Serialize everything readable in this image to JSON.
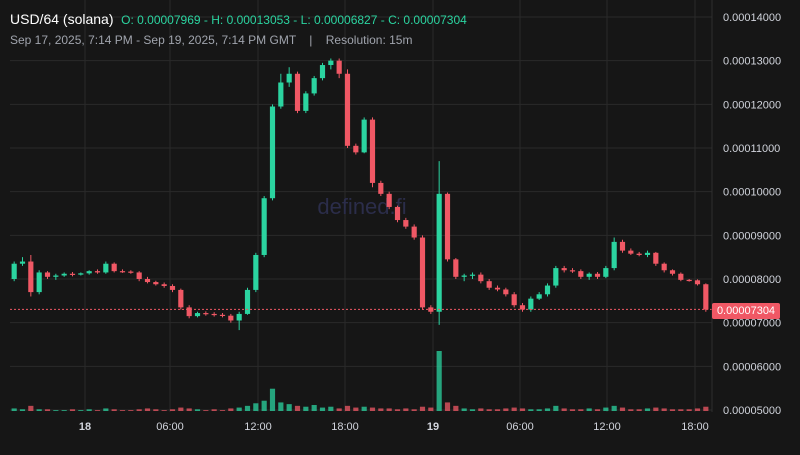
{
  "header": {
    "pair": "USD/64 (solana)",
    "o_label": "O:",
    "o_value": "0.00007969",
    "h_label": "H:",
    "h_value": "0.00013053",
    "l_label": "L:",
    "l_value": "0.00006827",
    "c_label": "C:",
    "c_value": "0.00007304",
    "date_range": "Sep 17, 2025, 7:14 PM - Sep 19, 2025, 7:14 PM GMT",
    "separator": "|",
    "resolution": "Resolution: 15m"
  },
  "watermark": "defined.fi",
  "last_price_label": "0.00007304",
  "colors": {
    "background": "#161616",
    "up": "#2bd4a0",
    "down": "#f05865",
    "grid": "#2a2a2a",
    "axis_text": "#d1d4dc",
    "last_price_line": "#f05865"
  },
  "chart_data": {
    "type": "candlestick",
    "y_axis_labels": [
      "0.00014000",
      "0.00013000",
      "0.00012000",
      "0.00011000",
      "0.00010000",
      "0.00009000",
      "0.00008000",
      "0.00007000",
      "0.00006000",
      "0.00005000"
    ],
    "x_axis_labels": [
      "18",
      "06:00",
      "12:00",
      "18:00",
      "19",
      "06:00",
      "12:00",
      "18:00"
    ],
    "ylim": [
      5e-05,
      0.00014
    ],
    "last_price": 7.304e-05,
    "grid": true,
    "candles": [
      [
        8e-05,
        8.4e-05,
        7.95e-05,
        8.35e-05
      ],
      [
        8.35e-05,
        8.5e-05,
        8.3e-05,
        8.4e-05
      ],
      [
        8.4e-05,
        8.55e-05,
        7.6e-05,
        7.7e-05
      ],
      [
        7.7e-05,
        8.2e-05,
        7.65e-05,
        8.15e-05
      ],
      [
        8.15e-05,
        8.18e-05,
        8e-05,
        8.05e-05
      ],
      [
        8.05e-05,
        8.12e-05,
        7.98e-05,
        8.08e-05
      ],
      [
        8.08e-05,
        8.15e-05,
        8.05e-05,
        8.12e-05
      ],
      [
        8.12e-05,
        8.16e-05,
        8.06e-05,
        8.1e-05
      ],
      [
        8.1e-05,
        8.15e-05,
        8.08e-05,
        8.13e-05
      ],
      [
        8.13e-05,
        8.2e-05,
        8.1e-05,
        8.18e-05
      ],
      [
        8.18e-05,
        8.22e-05,
        8.12e-05,
        8.15e-05
      ],
      [
        8.15e-05,
        8.4e-05,
        8.12e-05,
        8.35e-05
      ],
      [
        8.35e-05,
        8.38e-05,
        8.15e-05,
        8.18e-05
      ],
      [
        8.18e-05,
        8.22e-05,
        8.14e-05,
        8.17e-05
      ],
      [
        8.17e-05,
        8.2e-05,
        8.12e-05,
        8.15e-05
      ],
      [
        8.15e-05,
        8.18e-05,
        7.95e-05,
        8e-05
      ],
      [
        8e-05,
        8.05e-05,
        7.9e-05,
        7.93e-05
      ],
      [
        7.93e-05,
        7.96e-05,
        7.85e-05,
        7.88e-05
      ],
      [
        7.88e-05,
        7.92e-05,
        7.8e-05,
        7.84e-05
      ],
      [
        7.84e-05,
        7.88e-05,
        7.7e-05,
        7.75e-05
      ],
      [
        7.75e-05,
        7.78e-05,
        7.3e-05,
        7.35e-05
      ],
      [
        7.35e-05,
        7.4e-05,
        7.1e-05,
        7.15e-05
      ],
      [
        7.15e-05,
        7.25e-05,
        7.12e-05,
        7.22e-05
      ],
      [
        7.22e-05,
        7.26e-05,
        7.16e-05,
        7.2e-05
      ],
      [
        7.2e-05,
        7.24e-05,
        7.14e-05,
        7.18e-05
      ],
      [
        7.18e-05,
        7.22e-05,
        7.12e-05,
        7.16e-05
      ],
      [
        7.16e-05,
        7.2e-05,
        7e-05,
        7.05e-05
      ],
      [
        7.05e-05,
        7.25e-05,
        6.83e-05,
        7.2e-05
      ],
      [
        7.2e-05,
        7.8e-05,
        7.18e-05,
        7.75e-05
      ],
      [
        7.75e-05,
        8.6e-05,
        7.7e-05,
        8.55e-05
      ],
      [
        8.55e-05,
        9.9e-05,
        8.5e-05,
        9.85e-05
      ],
      [
        9.85e-05,
        0.00012,
        9.8e-05,
        0.0001195
      ],
      [
        0.0001195,
        0.000127,
        0.000119,
        0.000125
      ],
      [
        0.000125,
        0.0001285,
        0.000124,
        0.000127
      ],
      [
        0.000127,
        0.0001275,
        0.000118,
        0.0001185
      ],
      [
        0.0001185,
        0.000123,
        0.000118,
        0.0001225
      ],
      [
        0.0001225,
        0.0001265,
        0.000122,
        0.000126
      ],
      [
        0.000126,
        0.0001295,
        0.0001255,
        0.000129
      ],
      [
        0.000129,
        0.0001305,
        0.000128,
        0.00013
      ],
      [
        0.00013,
        0.0001305,
        0.000126,
        0.000127
      ],
      [
        0.000127,
        0.000128,
        0.00011,
        0.0001105
      ],
      [
        0.0001105,
        0.000111,
        0.0001085,
        0.000109
      ],
      [
        0.000109,
        0.000117,
        0.0001088,
        0.0001165
      ],
      [
        0.0001165,
        0.000117,
        0.000101,
        0.000102
      ],
      [
        0.000102,
        0.0001025,
        9.9e-05,
        9.95e-05
      ],
      [
        9.95e-05,
        0.0001,
        9.6e-05,
        9.65e-05
      ],
      [
        9.65e-05,
        9.68e-05,
        9.3e-05,
        9.35e-05
      ],
      [
        9.35e-05,
        9.4e-05,
        9.15e-05,
        9.2e-05
      ],
      [
        9.2e-05,
        9.25e-05,
        8.9e-05,
        8.95e-05
      ],
      [
        8.95e-05,
        9e-05,
        7.3e-05,
        7.35e-05
      ],
      [
        7.35e-05,
        7.4e-05,
        7.2e-05,
        7.25e-05
      ],
      [
        7.25e-05,
        0.000107,
        6.95e-05,
        9.95e-05
      ],
      [
        9.95e-05,
        9.98e-05,
        8.4e-05,
        8.45e-05
      ],
      [
        8.45e-05,
        8.48e-05,
        8e-05,
        8.05e-05
      ],
      [
        8.05e-05,
        8.12e-05,
        7.95e-05,
        8.08e-05
      ],
      [
        8.08e-05,
        8.15e-05,
        8e-05,
        8.1e-05
      ],
      [
        8.1e-05,
        8.15e-05,
        7.9e-05,
        7.95e-05
      ],
      [
        7.95e-05,
        8e-05,
        7.75e-05,
        7.8e-05
      ],
      [
        7.8e-05,
        7.85e-05,
        7.72e-05,
        7.76e-05
      ],
      [
        7.76e-05,
        7.8e-05,
        7.6e-05,
        7.65e-05
      ],
      [
        7.65e-05,
        7.7e-05,
        7.35e-05,
        7.4e-05
      ],
      [
        7.4e-05,
        7.45e-05,
        7.25e-05,
        7.3e-05
      ],
      [
        7.3e-05,
        7.6e-05,
        7.25e-05,
        7.55e-05
      ],
      [
        7.55e-05,
        7.7e-05,
        7.52e-05,
        7.65e-05
      ],
      [
        7.65e-05,
        7.9e-05,
        7.6e-05,
        7.85e-05
      ],
      [
        7.85e-05,
        8.3e-05,
        7.8e-05,
        8.25e-05
      ],
      [
        8.25e-05,
        8.3e-05,
        8.15e-05,
        8.2e-05
      ],
      [
        8.2e-05,
        8.25e-05,
        8.14e-05,
        8.18e-05
      ],
      [
        8.18e-05,
        8.22e-05,
        8e-05,
        8.05e-05
      ],
      [
        8.05e-05,
        8.15e-05,
        7.98e-05,
        8.12e-05
      ],
      [
        8.12e-05,
        8.16e-05,
        8e-05,
        8.05e-05
      ],
      [
        8.05e-05,
        8.3e-05,
        8.02e-05,
        8.25e-05
      ],
      [
        8.25e-05,
        8.95e-05,
        8.2e-05,
        8.85e-05
      ],
      [
        8.85e-05,
        8.9e-05,
        8.6e-05,
        8.65e-05
      ],
      [
        8.65e-05,
        8.7e-05,
        8.55e-05,
        8.58e-05
      ],
      [
        8.58e-05,
        8.62e-05,
        8.52e-05,
        8.55e-05
      ],
      [
        8.55e-05,
        8.65e-05,
        8.5e-05,
        8.6e-05
      ],
      [
        8.6e-05,
        8.62e-05,
        8.3e-05,
        8.35e-05
      ],
      [
        8.35e-05,
        8.38e-05,
        8.15e-05,
        8.2e-05
      ],
      [
        8.2e-05,
        8.22e-05,
        8.08e-05,
        8.12e-05
      ],
      [
        8.12e-05,
        8.15e-05,
        7.95e-05,
        7.98e-05
      ],
      [
        7.98e-05,
        8e-05,
        7.94e-05,
        7.97e-05
      ],
      [
        7.97e-05,
        7.99e-05,
        7.85e-05,
        7.88e-05
      ],
      [
        7.88e-05,
        7.9e-05,
        7.25e-05,
        7.3e-05
      ]
    ],
    "volumes": [
      3,
      2,
      6,
      2,
      2,
      1,
      1,
      2,
      1,
      2,
      1,
      3,
      2,
      1,
      1,
      2,
      3,
      2,
      1,
      2,
      4,
      3,
      2,
      1,
      2,
      1,
      3,
      4,
      6,
      9,
      12,
      26,
      10,
      8,
      6,
      5,
      7,
      4,
      5,
      3,
      6,
      4,
      5,
      4,
      3,
      3,
      2,
      3,
      2,
      5,
      4,
      70,
      10,
      6,
      3,
      2,
      3,
      2,
      2,
      3,
      4,
      3,
      2,
      2,
      3,
      6,
      3,
      2,
      2,
      3,
      2,
      4,
      6,
      4,
      2,
      2,
      3,
      4,
      3,
      2,
      2,
      2,
      3,
      5
    ]
  }
}
